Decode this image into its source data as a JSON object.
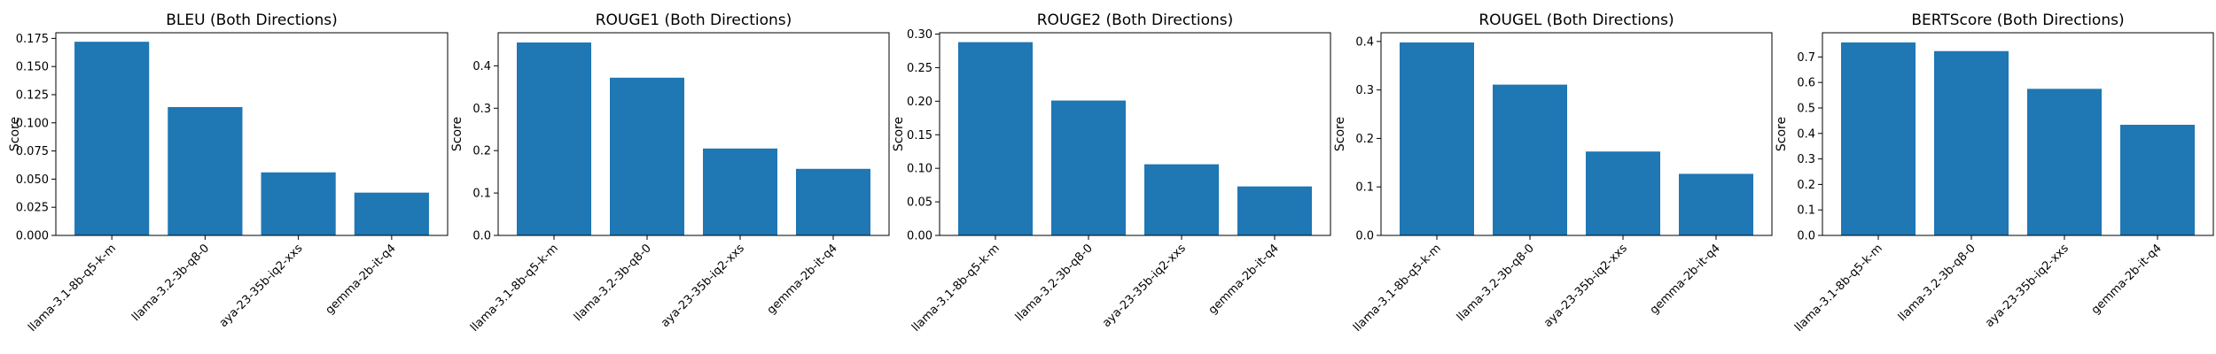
{
  "chart_data": [
    {
      "type": "bar",
      "title": "BLEU (Both Directions)",
      "xlabel": "",
      "ylabel": "Score",
      "categories": [
        "llama-3.1-8b-q5-k-m",
        "llama-3.2-3b-q8-0",
        "aya-23-35b-iq2-xxs",
        "gemma-2b-it-q4"
      ],
      "values": [
        0.172,
        0.114,
        0.056,
        0.038
      ],
      "ylim": [
        0,
        0.18
      ],
      "yticks": [
        0.0,
        0.025,
        0.05,
        0.075,
        0.1,
        0.125,
        0.15,
        0.175
      ],
      "ytick_labels": [
        "0.000",
        "0.025",
        "0.050",
        "0.075",
        "0.100",
        "0.125",
        "0.150",
        "0.175"
      ],
      "bar_color": "#1f77b4",
      "grid": false
    },
    {
      "type": "bar",
      "title": "ROUGE1 (Both Directions)",
      "xlabel": "",
      "ylabel": "Score",
      "categories": [
        "llama-3.1-8b-q5-k-m",
        "llama-3.2-3b-q8-0",
        "aya-23-35b-iq2-xxs",
        "gemma-2b-it-q4"
      ],
      "values": [
        0.455,
        0.372,
        0.205,
        0.157
      ],
      "ylim": [
        0,
        0.478
      ],
      "yticks": [
        0.0,
        0.1,
        0.2,
        0.3,
        0.4
      ],
      "ytick_labels": [
        "0.0",
        "0.1",
        "0.2",
        "0.3",
        "0.4"
      ],
      "bar_color": "#1f77b4",
      "grid": false
    },
    {
      "type": "bar",
      "title": "ROUGE2 (Both Directions)",
      "xlabel": "",
      "ylabel": "Score",
      "categories": [
        "llama-3.1-8b-q5-k-m",
        "llama-3.2-3b-q8-0",
        "aya-23-35b-iq2-xxs",
        "gemma-2b-it-q4"
      ],
      "values": [
        0.288,
        0.201,
        0.106,
        0.073
      ],
      "ylim": [
        0,
        0.302
      ],
      "yticks": [
        0.0,
        0.05,
        0.1,
        0.15,
        0.2,
        0.25,
        0.3
      ],
      "ytick_labels": [
        "0.00",
        "0.05",
        "0.10",
        "0.15",
        "0.20",
        "0.25",
        "0.30"
      ],
      "bar_color": "#1f77b4",
      "grid": false
    },
    {
      "type": "bar",
      "title": "ROUGEL (Both Directions)",
      "xlabel": "",
      "ylabel": "Score",
      "categories": [
        "llama-3.1-8b-q5-k-m",
        "llama-3.2-3b-q8-0",
        "aya-23-35b-iq2-xxs",
        "gemma-2b-it-q4"
      ],
      "values": [
        0.398,
        0.311,
        0.173,
        0.127
      ],
      "ylim": [
        0,
        0.418
      ],
      "yticks": [
        0.0,
        0.1,
        0.2,
        0.3,
        0.4
      ],
      "ytick_labels": [
        "0.0",
        "0.1",
        "0.2",
        "0.3",
        "0.4"
      ],
      "bar_color": "#1f77b4",
      "grid": false
    },
    {
      "type": "bar",
      "title": "BERTScore (Both Directions)",
      "xlabel": "",
      "ylabel": "Score",
      "categories": [
        "llama-3.1-8b-q5-k-m",
        "llama-3.2-3b-q8-0",
        "aya-23-35b-iq2-xxs",
        "gemma-2b-it-q4"
      ],
      "values": [
        0.757,
        0.723,
        0.575,
        0.434
      ],
      "ylim": [
        0,
        0.795
      ],
      "yticks": [
        0.0,
        0.1,
        0.2,
        0.3,
        0.4,
        0.5,
        0.6,
        0.7
      ],
      "ytick_labels": [
        "0.0",
        "0.1",
        "0.2",
        "0.3",
        "0.4",
        "0.5",
        "0.6",
        "0.7"
      ],
      "bar_color": "#1f77b4",
      "grid": false
    }
  ]
}
